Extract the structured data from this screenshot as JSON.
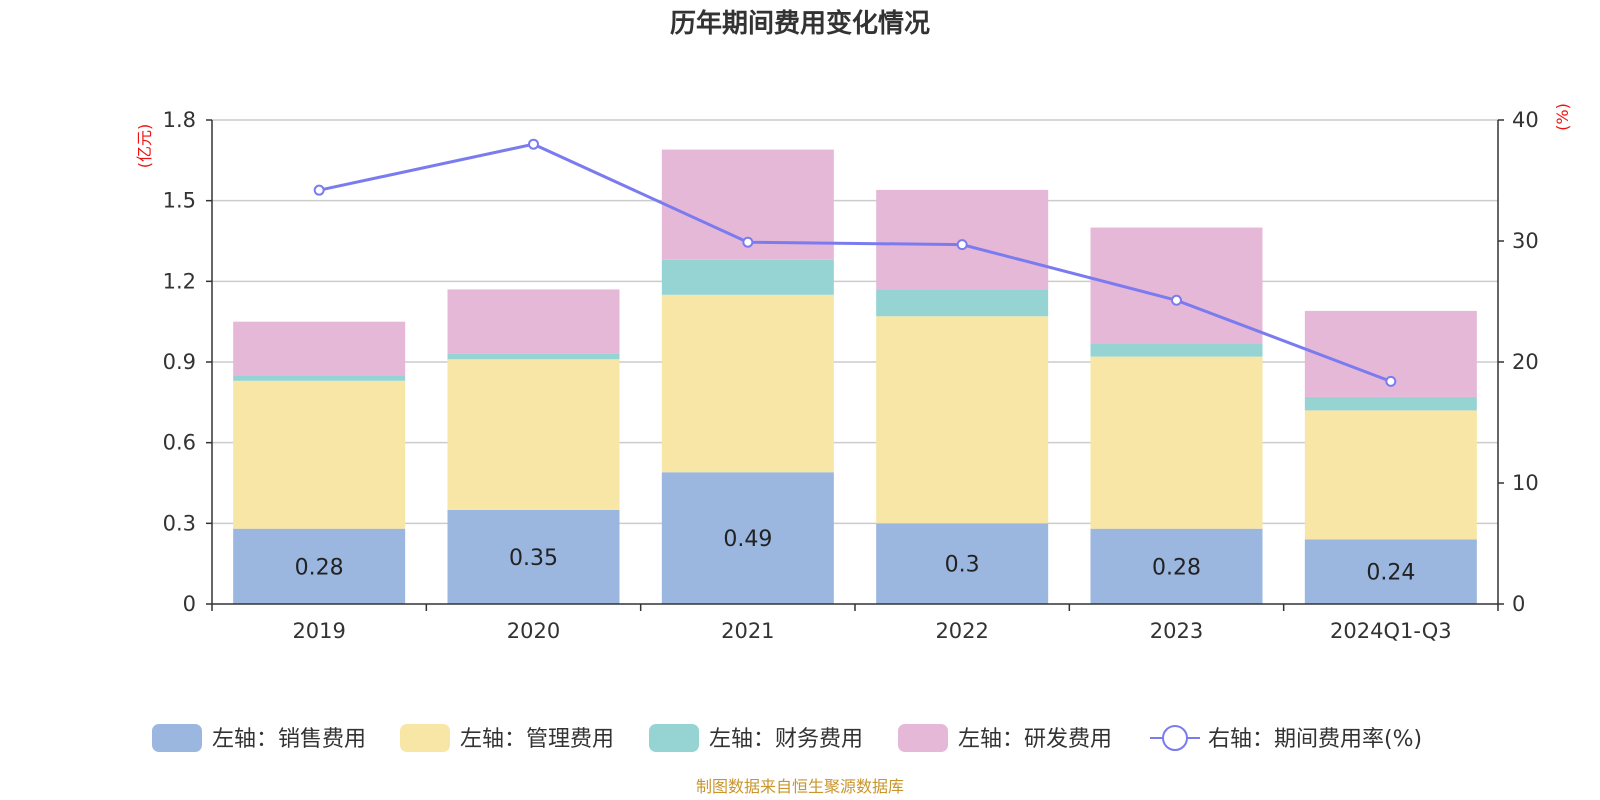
{
  "title": "历年期间费用变化情况",
  "left_unit": "(亿元)",
  "right_unit": "(%)",
  "source": "制图数据来自恒生聚源数据库",
  "colors": {
    "sales": "#9bb7e0",
    "admin": "#f7e6a6",
    "finance": "#96d4d4",
    "rd": "#e6b8d8",
    "rate": "#7b7bf0",
    "unit": "#ee1111",
    "source": "#c8962d",
    "grid": "#cccccc",
    "axis": "#333333"
  },
  "chart_data": {
    "type": "bar",
    "stacked": true,
    "title": "历年期间费用变化情况",
    "categories": [
      "2019",
      "2020",
      "2021",
      "2022",
      "2023",
      "2024Q1-Q3"
    ],
    "left_axis": {
      "unit": "(亿元)",
      "min": 0,
      "max": 1.8,
      "ticks": [
        0,
        0.3,
        0.6,
        0.9,
        1.2,
        1.5,
        1.8
      ],
      "tick_labels": [
        "0",
        "0.3",
        "0.6",
        "0.9",
        "1.2",
        "1.5",
        "1.8"
      ]
    },
    "right_axis": {
      "unit": "(%)",
      "min": 0,
      "max": 40,
      "ticks": [
        0,
        10,
        20,
        30,
        40
      ],
      "tick_labels": [
        "0",
        "10",
        "20",
        "30",
        "40"
      ]
    },
    "series": [
      {
        "key": "sales",
        "name": "左轴：销售费用",
        "axis": "left",
        "type": "bar",
        "values": [
          0.28,
          0.35,
          0.49,
          0.3,
          0.28,
          0.24
        ],
        "labels": [
          "0.28",
          "0.35",
          "0.49",
          "0.3",
          "0.28",
          "0.24"
        ]
      },
      {
        "key": "admin",
        "name": "左轴：管理费用",
        "axis": "left",
        "type": "bar",
        "values": [
          0.55,
          0.56,
          0.66,
          0.77,
          0.64,
          0.48
        ]
      },
      {
        "key": "finance",
        "name": "左轴：财务费用",
        "axis": "left",
        "type": "bar",
        "values": [
          0.02,
          0.02,
          0.13,
          0.1,
          0.05,
          0.05
        ]
      },
      {
        "key": "rd",
        "name": "左轴：研发费用",
        "axis": "left",
        "type": "bar",
        "values": [
          0.2,
          0.24,
          0.41,
          0.37,
          0.43,
          0.32
        ]
      },
      {
        "key": "rate",
        "name": "右轴：期间费用率(%)",
        "axis": "right",
        "type": "line",
        "values": [
          34.2,
          38.0,
          29.9,
          29.7,
          25.1,
          18.4
        ]
      }
    ],
    "legend_position": "bottom"
  }
}
